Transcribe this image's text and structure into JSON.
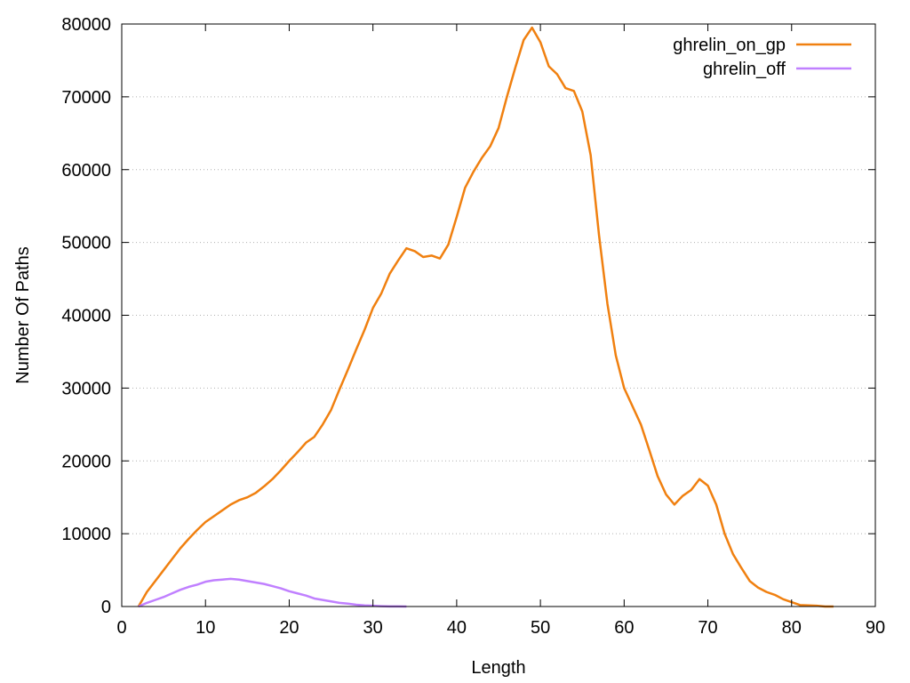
{
  "chart_data": {
    "type": "line",
    "title": "",
    "xlabel": "Length",
    "ylabel": "Number Of Paths",
    "xlim": [
      0,
      90
    ],
    "ylim": [
      0,
      80000
    ],
    "xticks": [
      0,
      10,
      20,
      30,
      40,
      50,
      60,
      70,
      80,
      90
    ],
    "yticks": [
      0,
      10000,
      20000,
      30000,
      40000,
      50000,
      60000,
      70000,
      80000
    ],
    "grid": "horizontal-dotted",
    "legend_position": "top-right",
    "series": [
      {
        "name": "ghrelin_on_gp",
        "color": "#f08010",
        "x": [
          2,
          3,
          4,
          5,
          6,
          7,
          8,
          9,
          10,
          11,
          12,
          13,
          14,
          15,
          16,
          17,
          18,
          19,
          20,
          21,
          22,
          23,
          24,
          25,
          26,
          27,
          28,
          29,
          30,
          31,
          32,
          33,
          34,
          35,
          36,
          37,
          38,
          39,
          40,
          41,
          42,
          43,
          44,
          45,
          46,
          47,
          48,
          49,
          50,
          51,
          52,
          53,
          54,
          55,
          56,
          57,
          58,
          59,
          60,
          61,
          62,
          63,
          64,
          65,
          66,
          67,
          68,
          69,
          70,
          71,
          72,
          73,
          74,
          75,
          76,
          77,
          78,
          79,
          80,
          81,
          82,
          83,
          84,
          85
        ],
        "y": [
          0,
          2000,
          3500,
          5000,
          6500,
          8000,
          9300,
          10500,
          11600,
          12400,
          13200,
          14000,
          14600,
          15000,
          15600,
          16500,
          17500,
          18700,
          20000,
          21200,
          22500,
          23300,
          25000,
          27000,
          29800,
          32500,
          35300,
          38000,
          41000,
          43000,
          45700,
          47500,
          49200,
          48800,
          48000,
          48200,
          47800,
          49700,
          53500,
          57500,
          59700,
          61600,
          63200,
          65700,
          70000,
          74000,
          77800,
          79500,
          77500,
          74200,
          73100,
          71200,
          70800,
          68000,
          62000,
          51000,
          41600,
          34500,
          30000,
          27500,
          25000,
          21500,
          17900,
          15400,
          14000,
          15200,
          16000,
          17500,
          16600,
          14000,
          10000,
          7200,
          5300,
          3500,
          2600,
          2000,
          1600,
          1000,
          600,
          200,
          150,
          100,
          0,
          0
        ]
      },
      {
        "name": "ghrelin_off",
        "color": "#c080ff",
        "x": [
          2,
          3,
          4,
          5,
          6,
          7,
          8,
          9,
          10,
          11,
          12,
          13,
          14,
          15,
          16,
          17,
          18,
          19,
          20,
          21,
          22,
          23,
          24,
          25,
          26,
          27,
          28,
          29,
          30,
          31,
          32,
          33,
          34
        ],
        "y": [
          0,
          500,
          900,
          1300,
          1800,
          2300,
          2700,
          3000,
          3400,
          3600,
          3700,
          3800,
          3700,
          3500,
          3300,
          3100,
          2800,
          2500,
          2100,
          1800,
          1500,
          1100,
          900,
          700,
          500,
          400,
          250,
          150,
          100,
          50,
          20,
          10,
          0
        ]
      }
    ]
  }
}
